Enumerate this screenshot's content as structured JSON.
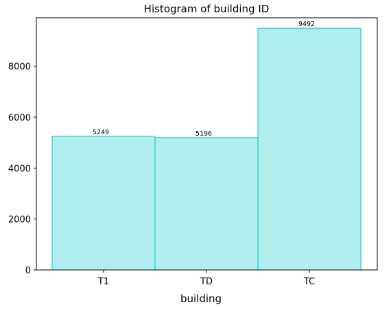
{
  "chart_data": {
    "type": "bar",
    "title": "Histogram of building ID",
    "xlabel": "building",
    "ylabel": "",
    "categories": [
      "T1",
      "TD",
      "TC"
    ],
    "values": [
      5249,
      5196,
      9492
    ],
    "data_labels": [
      "5249",
      "5196",
      "9492"
    ],
    "ylim": [
      0,
      9900
    ],
    "yticks": [
      0,
      2000,
      4000,
      6000,
      8000
    ],
    "ytick_labels": [
      "0",
      "2000",
      "4000",
      "6000",
      "8000"
    ],
    "grid": false,
    "legend": "none",
    "colors": {
      "bar_fill": "#b0eeee",
      "bar_edge": "#00c8cc",
      "axis": "#000000"
    }
  }
}
